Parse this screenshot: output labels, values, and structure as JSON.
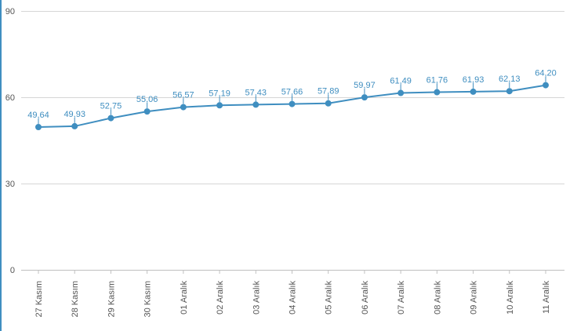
{
  "chart_data": {
    "type": "line",
    "title": "",
    "xlabel": "",
    "ylabel": "",
    "categories": [
      "27 Kasım",
      "28 Kasım",
      "29 Kasım",
      "30 Kasım",
      "01 Aralık",
      "02 Aralık",
      "03 Aralık",
      "04 Aralık",
      "05 Aralık",
      "06 Aralık",
      "07 Aralık",
      "08 Aralık",
      "09 Aralık",
      "10 Aralık",
      "11 Aralık"
    ],
    "values": [
      49.64,
      49.93,
      52.75,
      55.06,
      56.57,
      57.19,
      57.43,
      57.66,
      57.89,
      59.97,
      61.49,
      61.76,
      61.93,
      62.13,
      64.2
    ],
    "value_labels": [
      "49,64",
      "49,93",
      "52,75",
      "55,06",
      "56,57",
      "57,19",
      "57,43",
      "57,66",
      "57,89",
      "59,97",
      "61,49",
      "61,76",
      "61,93",
      "62,13",
      "64,20"
    ],
    "ylim": [
      0,
      90
    ],
    "y_ticks": [
      0,
      30,
      60,
      90
    ],
    "y_tick_labels": [
      "0",
      "30",
      "60",
      "90"
    ],
    "grid": true,
    "legend": "none",
    "colors": {
      "series": "#3f8ec0",
      "grid": "#d6d6d6",
      "text": "#555555"
    }
  }
}
